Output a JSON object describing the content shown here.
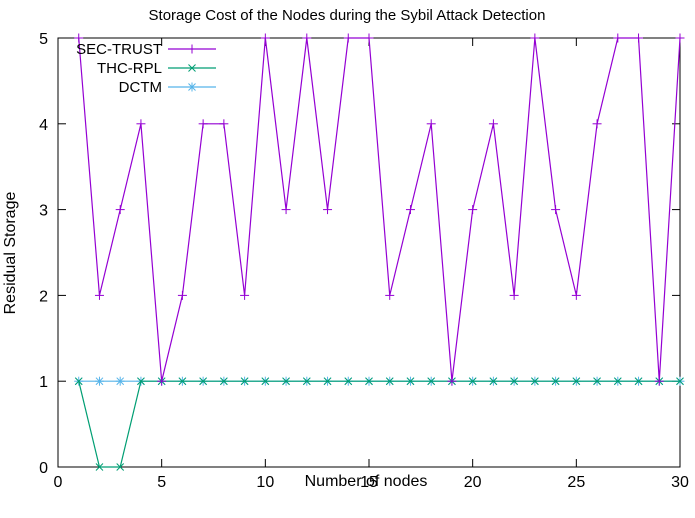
{
  "chart_data": {
    "type": "line",
    "title": "Storage Cost of the Nodes during the Sybil Attack Detection",
    "xlabel": "Number of nodes",
    "ylabel": "Residual Storage",
    "xlim": [
      0,
      30
    ],
    "ylim": [
      0,
      5
    ],
    "xticks": [
      0,
      5,
      10,
      15,
      20,
      25,
      30
    ],
    "yticks": [
      0,
      1,
      2,
      3,
      4,
      5
    ],
    "grid": false,
    "legend_position": "top-left",
    "x": [
      1,
      2,
      3,
      4,
      5,
      6,
      7,
      8,
      9,
      10,
      11,
      12,
      13,
      14,
      15,
      16,
      17,
      18,
      19,
      20,
      21,
      22,
      23,
      24,
      25,
      26,
      27,
      28,
      29,
      30
    ],
    "series": [
      {
        "name": "SEC-TRUST",
        "color": "#9400d3",
        "marker": "plus",
        "values": [
          5,
          2,
          3,
          4,
          1,
          2,
          4,
          4,
          2,
          5,
          3,
          5,
          3,
          5,
          5,
          2,
          3,
          4,
          1,
          3,
          4,
          2,
          5,
          3,
          2,
          4,
          5,
          5,
          1,
          5
        ]
      },
      {
        "name": "THC-RPL",
        "color": "#009e73",
        "marker": "cross",
        "values": [
          1,
          0,
          0,
          1,
          1,
          1,
          1,
          1,
          1,
          1,
          1,
          1,
          1,
          1,
          1,
          1,
          1,
          1,
          1,
          1,
          1,
          1,
          1,
          1,
          1,
          1,
          1,
          1,
          1,
          1
        ]
      },
      {
        "name": "DCTM",
        "color": "#56b4e9",
        "marker": "star",
        "values": [
          1,
          1,
          1,
          1,
          1,
          1,
          1,
          1,
          1,
          1,
          1,
          1,
          1,
          1,
          1,
          1,
          1,
          1,
          1,
          1,
          1,
          1,
          1,
          1,
          1,
          1,
          1,
          1,
          1,
          1
        ]
      }
    ]
  }
}
